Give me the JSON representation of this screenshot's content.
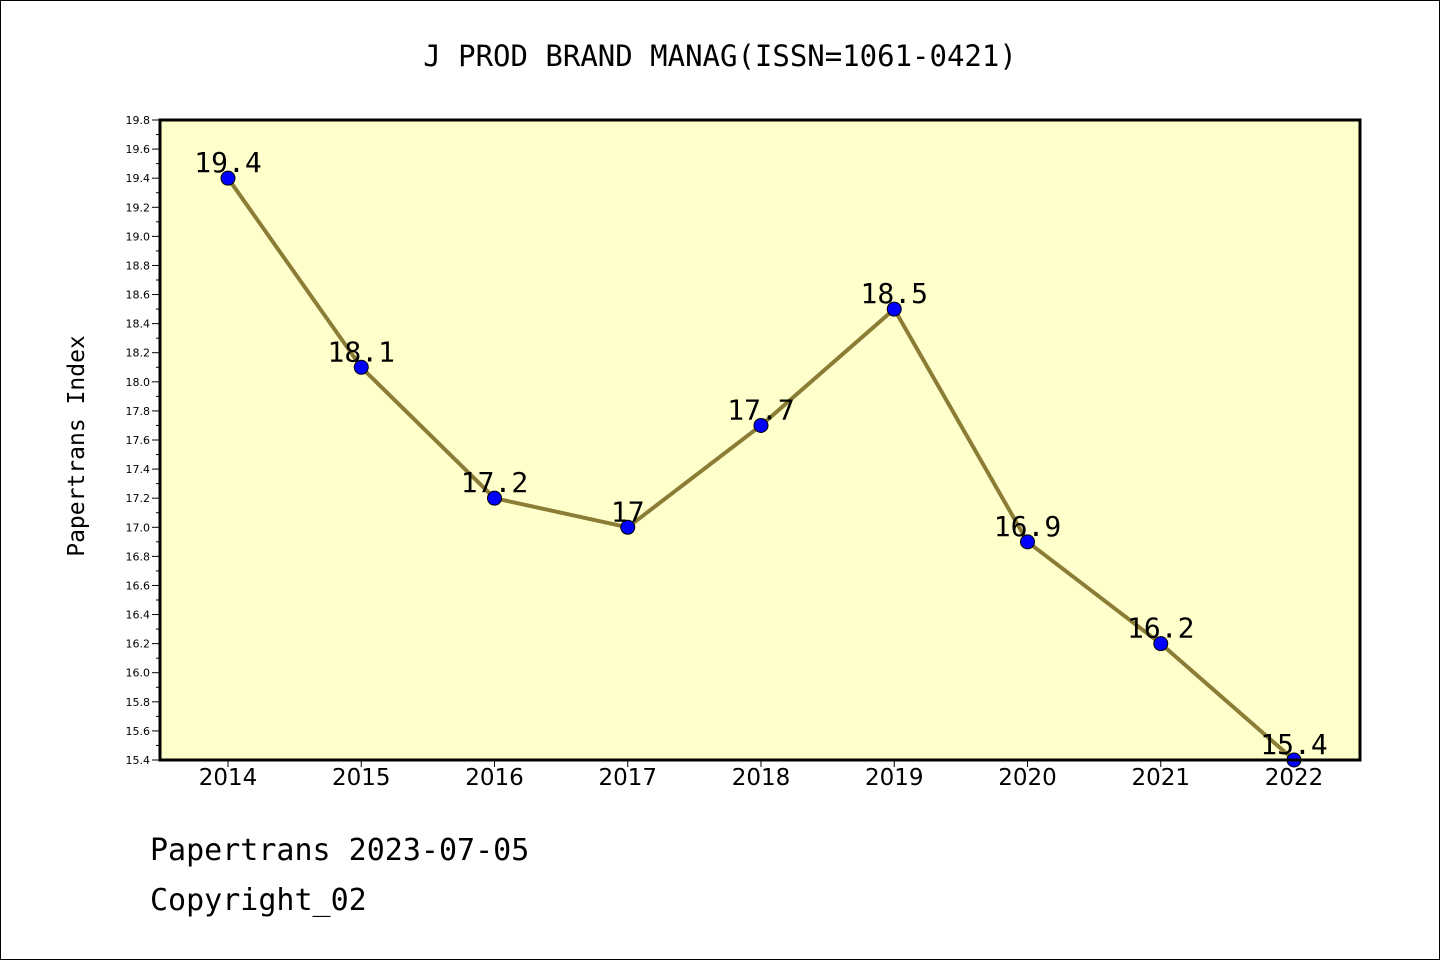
{
  "chart_data": {
    "type": "line",
    "title": "J PROD BRAND MANAG(ISSN=1061-0421)",
    "xlabel": "",
    "ylabel": "Papertrans Index",
    "categories": [
      "2014",
      "2015",
      "2016",
      "2017",
      "2018",
      "2019",
      "2020",
      "2021",
      "2022"
    ],
    "series": [
      {
        "values": [
          19.4,
          18.1,
          17.2,
          17.0,
          17.7,
          18.5,
          16.9,
          16.2,
          15.4
        ],
        "labels": [
          "19.4",
          "18.1",
          "17.2",
          "17",
          "17.7",
          "18.5",
          "16.9",
          "16.2",
          "15.4"
        ]
      }
    ],
    "ylim": [
      15.4,
      19.8
    ],
    "y_ticks": [
      "15.4",
      "15.6",
      "15.8",
      "16.0",
      "16.2",
      "16.4",
      "16.6",
      "16.8",
      "17.0",
      "17.2",
      "17.4",
      "17.6",
      "17.8",
      "18.0",
      "18.2",
      "18.4",
      "18.6",
      "18.8",
      "19.0",
      "19.2",
      "19.4",
      "19.6",
      "19.8"
    ],
    "grid": false,
    "legend": "none",
    "colors": {
      "plot_background": "#ffffcc",
      "line": "#8b7d35",
      "marker": "#0000ff",
      "axis": "#000000"
    }
  },
  "footer": {
    "line1": "Papertrans 2023-07-05",
    "line2": "Copyright_02"
  }
}
